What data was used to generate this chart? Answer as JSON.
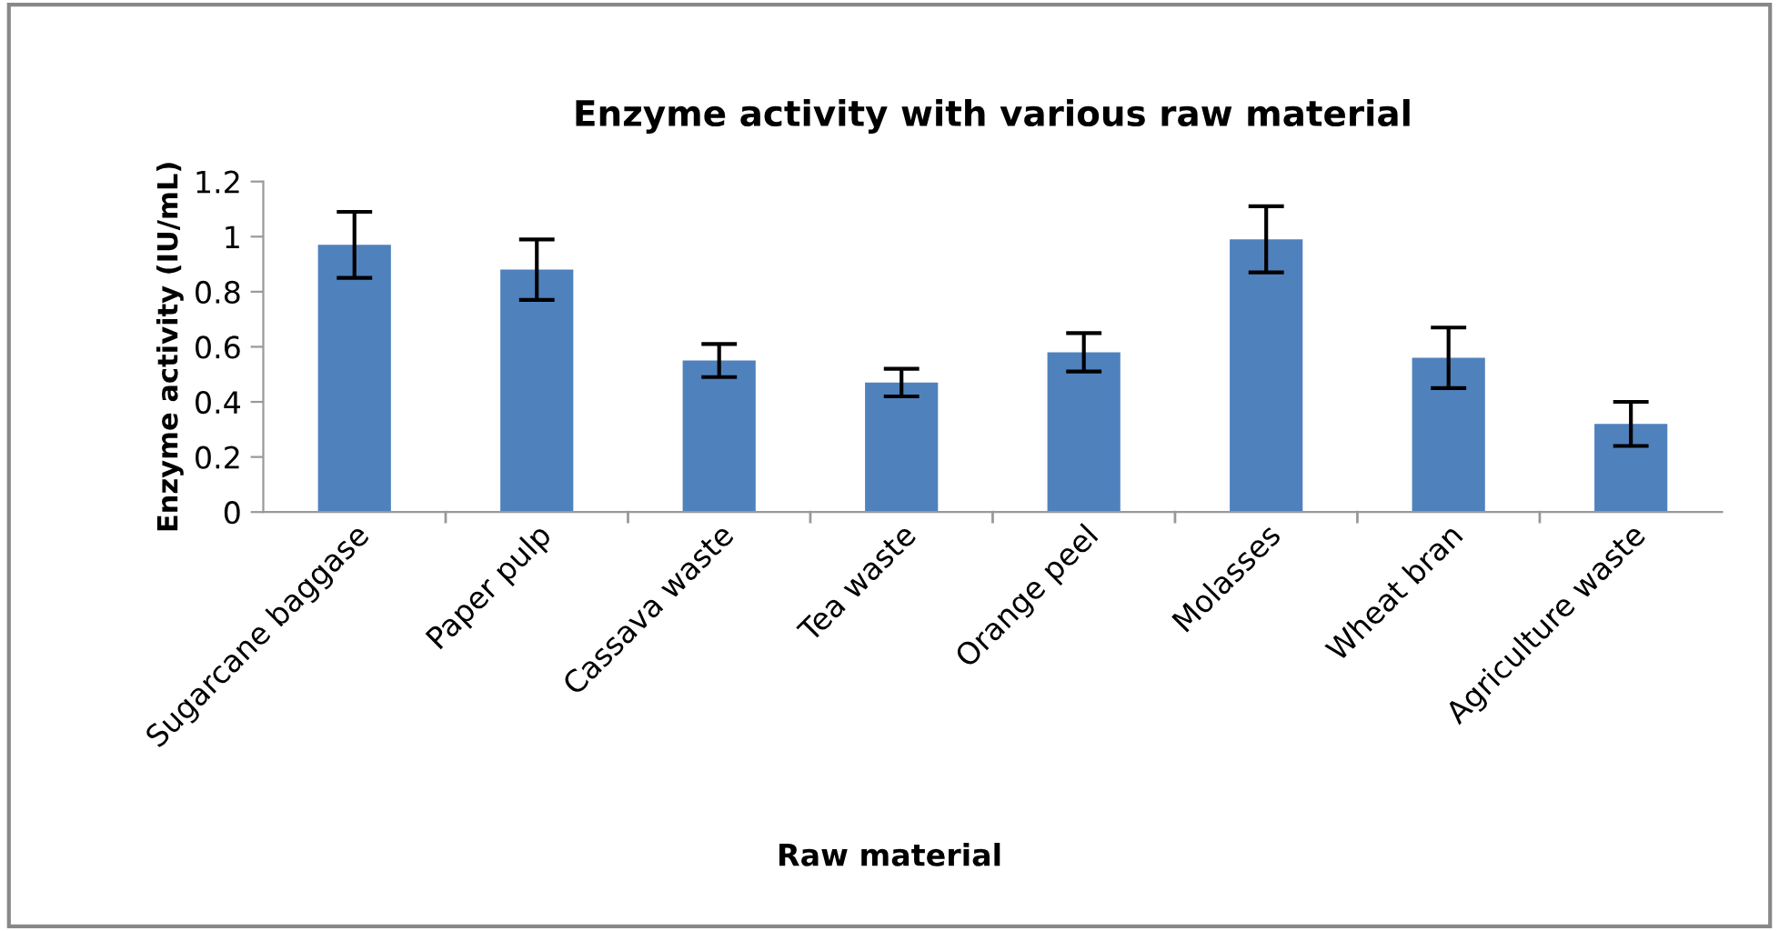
{
  "chart_data": {
    "type": "bar",
    "title": "Enzyme activity with various raw material",
    "xlabel": "Raw material",
    "ylabel": "Enzyme activity (IU/mL)",
    "categories": [
      "Sugarcane baggase",
      "Paper pulp",
      "Cassava waste",
      "Tea waste",
      "Orange peel",
      "Molasses",
      "Wheat bran",
      "Agriculture waste"
    ],
    "values": [
      0.97,
      0.88,
      0.55,
      0.47,
      0.58,
      0.99,
      0.56,
      0.32
    ],
    "errors": [
      0.12,
      0.11,
      0.06,
      0.05,
      0.07,
      0.12,
      0.11,
      0.08
    ],
    "color": "#4f81bd",
    "ylim": [
      0,
      1.2
    ],
    "yticks": [
      0,
      0.2,
      0.4,
      0.6,
      0.8,
      1,
      1.2
    ],
    "grid": false,
    "legend": false
  }
}
